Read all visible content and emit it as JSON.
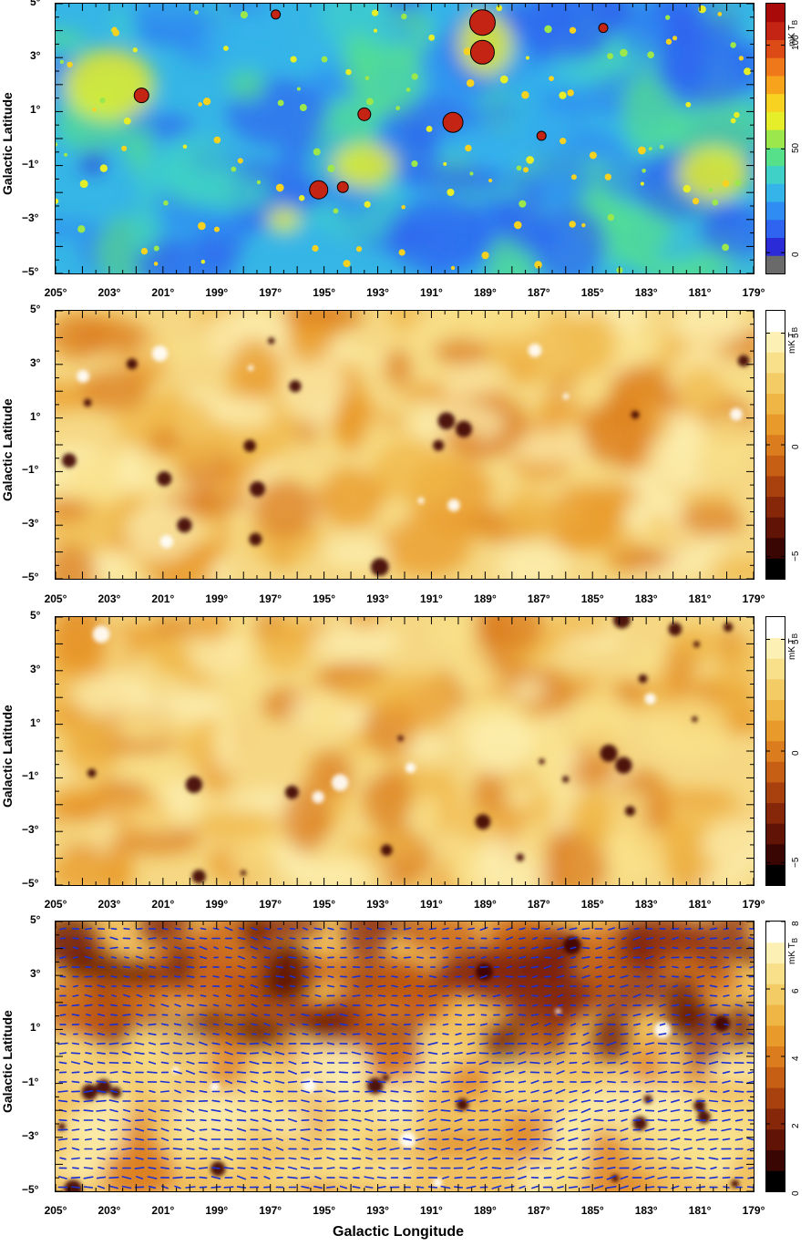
{
  "chart_data": [
    {
      "type": "heatmap",
      "panel": 1,
      "colormap": "rainbow",
      "colorbar_label": "mK T",
      "colorbar_label_sub": "B",
      "colorbar_ticks": [
        "100",
        "50",
        "0"
      ],
      "colorbar_tick_values": [
        100,
        50,
        0
      ],
      "colorbar_range": [
        -10,
        120
      ],
      "ylabel": "Galactic Latitude",
      "yticks": [
        "5°",
        "3°",
        "1°",
        "−1°",
        "−3°",
        "−5°"
      ],
      "xticks": [
        "205°",
        "203°",
        "201°",
        "199°",
        "197°",
        "195°",
        "193°",
        "191°",
        "189°",
        "187°",
        "185°",
        "183°",
        "181°",
        "179°"
      ],
      "x_range": [
        205,
        179
      ],
      "y_range": [
        -5,
        5
      ],
      "has_contours": true
    },
    {
      "type": "heatmap",
      "panel": 2,
      "colormap": "heat",
      "colorbar_label": "mK T",
      "colorbar_label_sub": "B",
      "colorbar_ticks": [
        "5",
        "0",
        "−5"
      ],
      "colorbar_tick_values": [
        5,
        0,
        -5
      ],
      "colorbar_range": [
        -6,
        6
      ],
      "ylabel": "Galactic Latitude",
      "yticks": [
        "5°",
        "3°",
        "1°",
        "−1°",
        "−3°",
        "−5°"
      ],
      "xticks": [
        "205°",
        "203°",
        "201°",
        "199°",
        "197°",
        "195°",
        "193°",
        "191°",
        "189°",
        "187°",
        "185°",
        "183°",
        "181°",
        "179°"
      ],
      "x_range": [
        205,
        179
      ],
      "y_range": [
        -5,
        5
      ]
    },
    {
      "type": "heatmap",
      "panel": 3,
      "colormap": "heat",
      "colorbar_label": "mK T",
      "colorbar_label_sub": "B",
      "colorbar_ticks": [
        "5",
        "0",
        "−5"
      ],
      "colorbar_tick_values": [
        5,
        0,
        -5
      ],
      "colorbar_range": [
        -6,
        6
      ],
      "ylabel": "Galactic Latitude",
      "yticks": [
        "5°",
        "3°",
        "1°",
        "−1°",
        "−3°",
        "−5°"
      ],
      "xticks": [
        "205°",
        "203°",
        "201°",
        "199°",
        "197°",
        "195°",
        "193°",
        "191°",
        "189°",
        "187°",
        "185°",
        "183°",
        "181°",
        "179°"
      ],
      "x_range": [
        205,
        179
      ],
      "y_range": [
        -5,
        5
      ]
    },
    {
      "type": "heatmap",
      "panel": 4,
      "colormap": "heat",
      "colorbar_label": "mK T",
      "colorbar_label_sub": "B",
      "colorbar_ticks": [
        "8",
        "6",
        "4",
        "2",
        "0"
      ],
      "colorbar_tick_values": [
        8,
        6,
        4,
        2,
        0
      ],
      "colorbar_range": [
        0,
        8
      ],
      "ylabel": "Galactic Latitude",
      "xlabel": "Galactic Longitude",
      "yticks": [
        "5°",
        "3°",
        "1°",
        "−1°",
        "−3°",
        "−5°"
      ],
      "xticks": [
        "205°",
        "203°",
        "201°",
        "199°",
        "197°",
        "195°",
        "193°",
        "191°",
        "189°",
        "187°",
        "185°",
        "183°",
        "181°",
        "179°"
      ],
      "x_range": [
        205,
        179
      ],
      "y_range": [
        -5,
        5
      ],
      "overlay": "polarization vectors",
      "overlay_color": "#1a2fd6"
    }
  ],
  "xlabel": "Galactic Longitude"
}
